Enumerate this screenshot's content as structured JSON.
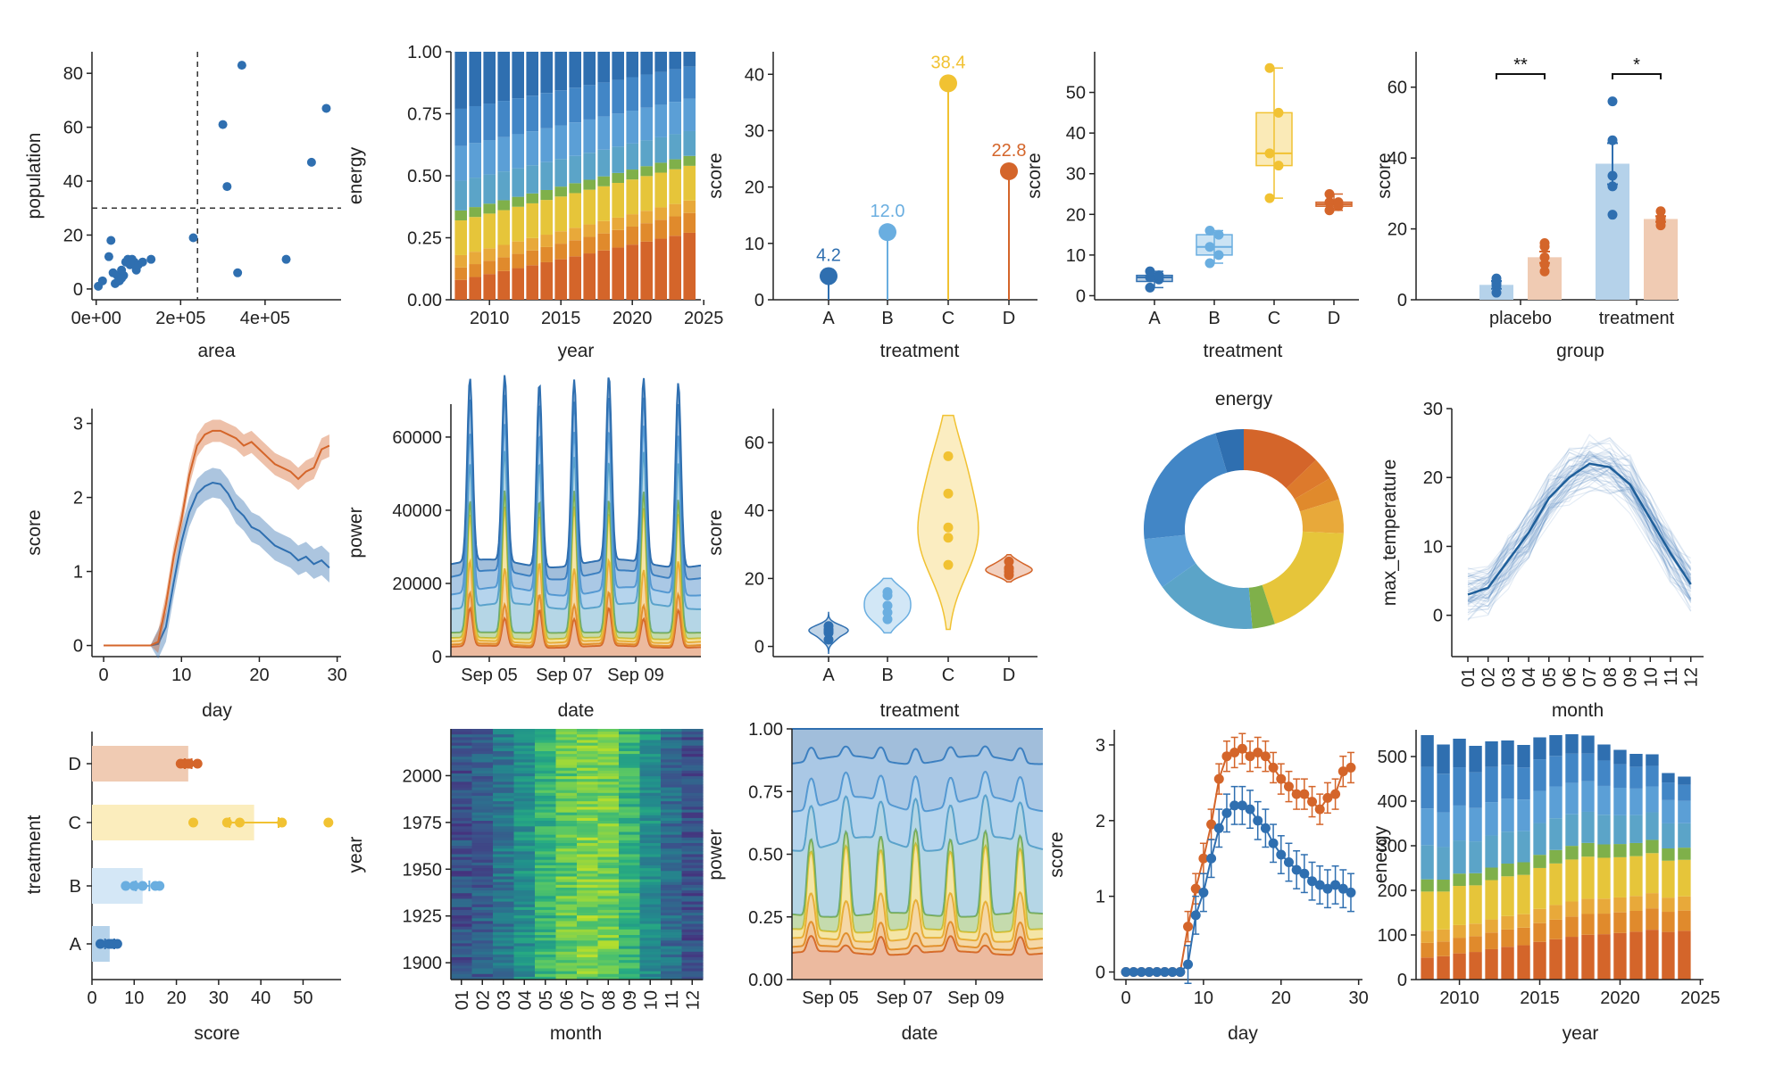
{
  "colors": {
    "dark_blue": "#2f6fb0",
    "light_blue": "#6aaee0",
    "yellow": "#f1c232",
    "orange": "#d4652a",
    "stack": [
      "#d4652a",
      "#e08a2c",
      "#e8a93a",
      "#e6c53a",
      "#7fb04a",
      "#5ba4c8",
      "#5b9fd6",
      "#4286c6",
      "#2f6fb0"
    ]
  },
  "chart_data": [
    {
      "id": "p1",
      "type": "scatter",
      "xlabel": "area",
      "ylabel": "population",
      "xticks": [
        "0e+00",
        "2e+05",
        "4e+05"
      ],
      "yticks": [
        "0",
        "20",
        "40",
        "60",
        "80"
      ],
      "xlim": [
        -10000,
        580000
      ],
      "ylim": [
        -4,
        88
      ],
      "vline": 240000,
      "hline": 30,
      "points": [
        [
          5000,
          1
        ],
        [
          15000,
          3
        ],
        [
          30000,
          12
        ],
        [
          40000,
          6
        ],
        [
          45000,
          2
        ],
        [
          50000,
          5
        ],
        [
          55000,
          3
        ],
        [
          60000,
          7
        ],
        [
          65000,
          5
        ],
        [
          70000,
          10
        ],
        [
          75000,
          11
        ],
        [
          80000,
          9
        ],
        [
          85000,
          11
        ],
        [
          90000,
          10
        ],
        [
          95000,
          7
        ],
        [
          100000,
          9
        ],
        [
          110000,
          10
        ],
        [
          130000,
          11
        ],
        [
          35000,
          18
        ],
        [
          230000,
          19
        ],
        [
          300000,
          61
        ],
        [
          310000,
          38
        ],
        [
          335000,
          6
        ],
        [
          345000,
          83
        ],
        [
          450000,
          11
        ],
        [
          510000,
          47
        ],
        [
          545000,
          67
        ],
        [
          60000,
          4
        ]
      ]
    },
    {
      "id": "p2",
      "type": "bar",
      "xlabel": "year",
      "ylabel": "energy",
      "xticks": [
        "2010",
        "2015",
        "2020",
        "2025"
      ],
      "yticks": [
        "0.00",
        "0.25",
        "0.50",
        "0.75",
        "1.00"
      ],
      "years": [
        2008,
        2009,
        2010,
        2011,
        2012,
        2013,
        2014,
        2015,
        2016,
        2017,
        2018,
        2019,
        2020,
        2021,
        2022,
        2023,
        2024
      ],
      "shares_start": [
        0.08,
        0.05,
        0.05,
        0.14,
        0.04,
        0.12,
        0.14,
        0.15,
        0.23
      ],
      "shares_end": [
        0.27,
        0.08,
        0.05,
        0.14,
        0.04,
        0.1,
        0.13,
        0.13,
        0.06
      ]
    },
    {
      "id": "p3",
      "type": "lollipop",
      "xlabel": "treatment",
      "ylabel": "score",
      "categories": [
        "A",
        "B",
        "C",
        "D"
      ],
      "values": [
        4.2,
        12.0,
        38.4,
        22.8
      ],
      "labels": [
        "4.2",
        "12.0",
        "38.4",
        "22.8"
      ],
      "yticks": [
        "0",
        "10",
        "20",
        "30",
        "40"
      ],
      "ylim": [
        0,
        44
      ]
    },
    {
      "id": "p4",
      "type": "box",
      "xlabel": "treatment",
      "ylabel": "score",
      "categories": [
        "A",
        "B",
        "C",
        "D"
      ],
      "yticks": [
        "0",
        "10",
        "20",
        "30",
        "40",
        "50"
      ],
      "ylim": [
        -1,
        60
      ],
      "boxes": [
        {
          "min": 2,
          "q1": 3.5,
          "median": 4.5,
          "q3": 5,
          "max": 6,
          "points": [
            2,
            4,
            4.5,
            5,
            6
          ]
        },
        {
          "min": 8,
          "q1": 10,
          "median": 12,
          "q3": 15,
          "max": 16,
          "points": [
            8,
            10,
            12,
            15,
            16
          ]
        },
        {
          "min": 24,
          "q1": 32,
          "median": 35,
          "q3": 45,
          "max": 56,
          "points": [
            24,
            32,
            35,
            45,
            56
          ]
        },
        {
          "min": 21,
          "q1": 22,
          "median": 22.5,
          "q3": 23,
          "max": 25,
          "points": [
            21,
            22,
            23,
            23,
            25
          ]
        }
      ]
    },
    {
      "id": "p5",
      "type": "bar",
      "xlabel": "group",
      "ylabel": "score",
      "categories": [
        "placebo",
        "treatment"
      ],
      "yticks": [
        "0",
        "20",
        "40",
        "60"
      ],
      "ylim": [
        0,
        70
      ],
      "series": [
        {
          "name": "",
          "values": [
            4.2,
            38.4
          ],
          "err": [
            1.1,
            5.8
          ],
          "points": [
            [
              2,
              4,
              4.5,
              5,
              6
            ],
            [
              24,
              32,
              35,
              45,
              56
            ]
          ]
        },
        {
          "name": "",
          "values": [
            12.0,
            22.8
          ],
          "err": [
            1.6,
            0.8
          ],
          "points": [
            [
              8,
              10,
              12,
              15,
              16
            ],
            [
              21,
              22,
              23,
              23,
              25
            ]
          ]
        }
      ],
      "sig": [
        "**",
        "*"
      ]
    },
    {
      "id": "p6",
      "type": "line",
      "xlabel": "day",
      "ylabel": "score",
      "xticks": [
        "0",
        "10",
        "20",
        "30"
      ],
      "yticks": [
        "0",
        "1",
        "2",
        "3"
      ],
      "xlim": [
        -1.5,
        30.5
      ],
      "ylim": [
        -0.15,
        3.2
      ],
      "x": [
        0,
        1,
        2,
        3,
        4,
        5,
        6,
        7,
        8,
        9,
        10,
        11,
        12,
        13,
        14,
        15,
        16,
        17,
        18,
        19,
        20,
        21,
        22,
        23,
        24,
        25,
        26,
        27,
        28,
        29
      ],
      "series": [
        {
          "name": "",
          "values": [
            0,
            0,
            0,
            0,
            0,
            0,
            0,
            0.02,
            0.25,
            0.85,
            1.4,
            1.8,
            2.05,
            2.15,
            2.2,
            2.18,
            2.05,
            1.85,
            1.75,
            1.6,
            1.55,
            1.45,
            1.35,
            1.3,
            1.25,
            1.15,
            1.2,
            1.1,
            1.15,
            1.05
          ],
          "band": 0.2
        },
        {
          "name": "",
          "values": [
            0,
            0,
            0,
            0,
            0,
            0,
            0,
            0.05,
            0.55,
            1.2,
            1.7,
            2.3,
            2.7,
            2.85,
            2.9,
            2.9,
            2.85,
            2.8,
            2.7,
            2.75,
            2.65,
            2.55,
            2.45,
            2.4,
            2.35,
            2.25,
            2.35,
            2.4,
            2.65,
            2.7
          ],
          "band": 0.15
        }
      ]
    },
    {
      "id": "p7",
      "type": "area",
      "xlabel": "date",
      "ylabel": "power",
      "xticks": [
        "Sep 05",
        "Sep 07",
        "Sep 09"
      ],
      "yticks": [
        "0",
        "20000",
        "40000",
        "60000"
      ],
      "ylim": [
        0,
        69000
      ],
      "x": [
        "Sep 04",
        "Sep 05",
        "Sep 06",
        "Sep 07",
        "Sep 08",
        "Sep 09",
        "Sep 10",
        "Sep 11"
      ]
    },
    {
      "id": "p8",
      "type": "violin",
      "xlabel": "treatment",
      "ylabel": "score",
      "categories": [
        "A",
        "B",
        "C",
        "D"
      ],
      "yticks": [
        "0",
        "20",
        "40",
        "60"
      ],
      "ylim": [
        -3,
        70
      ],
      "points": [
        [
          2,
          4,
          4.5,
          5,
          6
        ],
        [
          8,
          10,
          12,
          15,
          16
        ],
        [
          24,
          32,
          35,
          45,
          56
        ],
        [
          21,
          22,
          23,
          23,
          25
        ]
      ]
    },
    {
      "id": "p9",
      "type": "pie",
      "title": "energy",
      "values": [
        0.14,
        0.04,
        0.04,
        0.06,
        0.21,
        0.04,
        0.18,
        0.09,
        0.24,
        0.05
      ]
    },
    {
      "id": "p10",
      "type": "line",
      "xlabel": "month",
      "ylabel": "max_temperature",
      "xticks": [
        "01",
        "02",
        "03",
        "04",
        "05",
        "06",
        "07",
        "08",
        "09",
        "10",
        "11",
        "12"
      ],
      "yticks": [
        "0",
        "10",
        "20",
        "30"
      ],
      "ylim": [
        -6,
        30
      ],
      "mean": [
        3,
        4,
        8,
        12,
        17,
        20,
        22,
        21.5,
        19,
        14,
        9,
        4.5
      ]
    },
    {
      "id": "p11",
      "type": "bar",
      "xlabel": "score",
      "ylabel": "treatment",
      "categories": [
        "A",
        "B",
        "C",
        "D"
      ],
      "values": [
        4.2,
        12.0,
        38.4,
        22.8
      ],
      "err": [
        1.1,
        1.6,
        5.8,
        0.8
      ],
      "points": [
        [
          2,
          4,
          4.5,
          5,
          6
        ],
        [
          8,
          10,
          12,
          15,
          16
        ],
        [
          24,
          32,
          35,
          45,
          56
        ],
        [
          21,
          22,
          23,
          23,
          25
        ]
      ],
      "xticks": [
        "0",
        "10",
        "20",
        "30",
        "40",
        "50"
      ],
      "xlim": [
        0,
        59
      ]
    },
    {
      "id": "p12",
      "type": "heatmap",
      "xlabel": "month",
      "ylabel": "year",
      "xticks": [
        "01",
        "02",
        "03",
        "04",
        "05",
        "06",
        "07",
        "08",
        "09",
        "10",
        "11",
        "12"
      ],
      "yticks": [
        "2000",
        "1975",
        "1950",
        "1925",
        "1900"
      ],
      "yrange": [
        1891,
        2025
      ],
      "month_level": [
        0.25,
        0.3,
        0.4,
        0.5,
        0.65,
        0.75,
        0.8,
        0.78,
        0.65,
        0.5,
        0.35,
        0.25
      ]
    },
    {
      "id": "p13",
      "type": "area",
      "xlabel": "date",
      "ylabel": "power",
      "xticks": [
        "Sep 05",
        "Sep 07",
        "Sep 09"
      ],
      "yticks": [
        "0.00",
        "0.25",
        "0.50",
        "0.75",
        "1.00"
      ],
      "ylim": [
        0,
        1
      ]
    },
    {
      "id": "p14",
      "type": "line",
      "xlabel": "day",
      "ylabel": "score",
      "xticks": [
        "0",
        "10",
        "20",
        "30"
      ],
      "yticks": [
        "0",
        "1",
        "2",
        "3"
      ],
      "xlim": [
        -1.5,
        30.5
      ],
      "ylim": [
        -0.1,
        3.2
      ],
      "x": [
        0,
        1,
        2,
        3,
        4,
        5,
        6,
        7,
        8,
        9,
        10,
        11,
        12,
        13,
        14,
        15,
        16,
        17,
        18,
        19,
        20,
        21,
        22,
        23,
        24,
        25,
        26,
        27,
        28,
        29
      ],
      "series": [
        {
          "name": "",
          "values": [
            0,
            0,
            0,
            0,
            0,
            0,
            0,
            0,
            0.1,
            0.75,
            1.05,
            1.5,
            1.9,
            2.1,
            2.2,
            2.2,
            2.15,
            2.0,
            1.9,
            1.7,
            1.55,
            1.45,
            1.35,
            1.3,
            1.2,
            1.15,
            1.1,
            1.15,
            1.1,
            1.05
          ],
          "err": 0.25
        },
        {
          "name": "",
          "values": [
            0,
            0,
            0,
            0,
            0,
            0,
            0,
            0,
            0.6,
            1.1,
            1.5,
            1.95,
            2.55,
            2.85,
            2.9,
            2.95,
            2.85,
            2.9,
            2.85,
            2.7,
            2.55,
            2.45,
            2.35,
            2.35,
            2.25,
            2.15,
            2.3,
            2.35,
            2.65,
            2.7
          ],
          "err": 0.2
        }
      ]
    },
    {
      "id": "p15",
      "type": "bar",
      "xlabel": "year",
      "ylabel": "energy",
      "xticks": [
        "2010",
        "2015",
        "2020",
        "2025"
      ],
      "yticks": [
        "0",
        "100",
        "200",
        "300",
        "400",
        "500"
      ],
      "ylim": [
        0,
        560
      ],
      "years": [
        2008,
        2009,
        2010,
        2011,
        2012,
        2013,
        2014,
        2015,
        2016,
        2017,
        2018,
        2019,
        2020,
        2021,
        2022,
        2023,
        2024
      ],
      "totals": [
        548,
        527,
        540,
        524,
        534,
        536,
        526,
        543,
        548,
        550,
        547,
        527,
        515,
        506,
        505,
        463,
        455
      ]
    }
  ]
}
